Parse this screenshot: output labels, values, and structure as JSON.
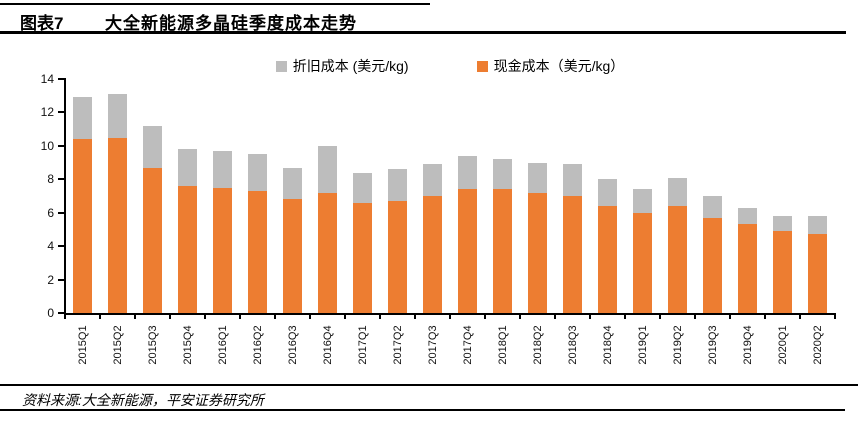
{
  "header": {
    "figure_label": "图表7",
    "title": "大全新能源多晶硅季度成本走势"
  },
  "legend": {
    "items": [
      {
        "label": "折旧成本 (美元/kg)",
        "color": "#BDBDBD"
      },
      {
        "label": "现金成本（美元/kg）",
        "color": "#ED7D31"
      }
    ]
  },
  "footer": {
    "source": "资料来源:大全新能源，平安证券研究所"
  },
  "chart_data": {
    "type": "bar",
    "stacked": true,
    "title": "大全新能源多晶硅季度成本走势",
    "xlabel": "",
    "ylabel": "",
    "ylim": [
      0,
      14
    ],
    "ytick_step": 2,
    "grid": false,
    "legend_position": "top",
    "categories": [
      "2015Q1",
      "2015Q2",
      "2015Q3",
      "2015Q4",
      "2016Q1",
      "2016Q2",
      "2016Q3",
      "2016Q4",
      "2017Q1",
      "2017Q2",
      "2017Q3",
      "2017Q4",
      "2018Q1",
      "2018Q2",
      "2018Q3",
      "2018Q4",
      "2019Q1",
      "2019Q2",
      "2019Q3",
      "2019Q4",
      "2020Q1",
      "2020Q2"
    ],
    "series": [
      {
        "name": "现金成本（美元/kg）",
        "color": "#ED7D31",
        "values": [
          10.4,
          10.5,
          8.7,
          7.6,
          7.5,
          7.3,
          6.8,
          7.2,
          6.6,
          6.7,
          7.0,
          7.4,
          7.4,
          7.2,
          7.0,
          6.4,
          6.0,
          6.4,
          5.7,
          5.3,
          4.9,
          4.7
        ]
      },
      {
        "name": "折旧成本 (美元/kg)",
        "color": "#BDBDBD",
        "values": [
          2.5,
          2.6,
          2.5,
          2.2,
          2.2,
          2.2,
          1.9,
          2.8,
          1.8,
          1.9,
          1.9,
          2.0,
          1.8,
          1.8,
          1.9,
          1.6,
          1.4,
          1.7,
          1.3,
          1.0,
          0.9,
          1.1
        ]
      }
    ]
  }
}
